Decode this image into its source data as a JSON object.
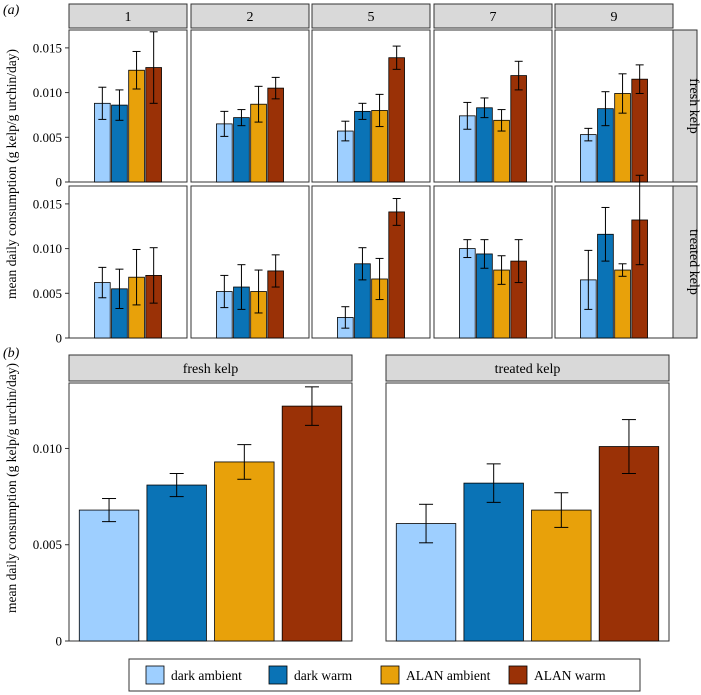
{
  "panel_labels": [
    "(a)",
    "(b)"
  ],
  "colors": {
    "dark ambient": "#9ecfff",
    "dark warm": "#0a73b6",
    "ALAN ambient": "#e8a10a",
    "ALAN warm": "#9a3106",
    "strip_fill": "#d9d9d9",
    "panel_border": "#333333"
  },
  "legend": [
    "dark ambient",
    "dark warm",
    "ALAN ambient",
    "ALAN warm"
  ],
  "chart_data": [
    {
      "type": "bar",
      "panel": "(a)",
      "facet_columns": [
        "1",
        "2",
        "5",
        "7",
        "9"
      ],
      "facet_rows": [
        "fresh kelp",
        "treated kelp"
      ],
      "ylabel": "mean daily consumption (g kelp/g urchin/day)",
      "ylim": [
        0,
        0.017
      ],
      "yticks": [
        0,
        0.005,
        0.01,
        0.015
      ],
      "ytick_labels": [
        "0",
        "0.005",
        "0.010",
        "0.015"
      ],
      "categories": [
        "dark ambient",
        "dark warm",
        "ALAN ambient",
        "ALAN warm"
      ],
      "facets": [
        {
          "row": "fresh kelp",
          "col": "1",
          "values": [
            0.0088,
            0.0086,
            0.0125,
            0.0128
          ],
          "err": [
            0.0018,
            0.0017,
            0.0021,
            0.004
          ]
        },
        {
          "row": "fresh kelp",
          "col": "2",
          "values": [
            0.0065,
            0.0072,
            0.0087,
            0.0105
          ],
          "err": [
            0.0014,
            0.0009,
            0.002,
            0.0012
          ]
        },
        {
          "row": "fresh kelp",
          "col": "5",
          "values": [
            0.0057,
            0.0079,
            0.008,
            0.0139
          ],
          "err": [
            0.0011,
            0.0009,
            0.0018,
            0.0013
          ]
        },
        {
          "row": "fresh kelp",
          "col": "7",
          "values": [
            0.0074,
            0.0083,
            0.0069,
            0.0119
          ],
          "err": [
            0.0015,
            0.0011,
            0.0012,
            0.0016
          ]
        },
        {
          "row": "fresh kelp",
          "col": "9",
          "values": [
            0.0053,
            0.0082,
            0.0099,
            0.0115
          ],
          "err": [
            0.0007,
            0.0019,
            0.0022,
            0.0016
          ]
        },
        {
          "row": "treated kelp",
          "col": "1",
          "values": [
            0.0062,
            0.0055,
            0.0068,
            0.007
          ],
          "err": [
            0.0017,
            0.0022,
            0.0031,
            0.0031
          ]
        },
        {
          "row": "treated kelp",
          "col": "2",
          "values": [
            0.0052,
            0.0057,
            0.0052,
            0.0075
          ],
          "err": [
            0.0018,
            0.0025,
            0.0024,
            0.0018
          ]
        },
        {
          "row": "treated kelp",
          "col": "5",
          "values": [
            0.0023,
            0.0083,
            0.0066,
            0.0141
          ],
          "err": [
            0.0012,
            0.0018,
            0.0023,
            0.0015
          ]
        },
        {
          "row": "treated kelp",
          "col": "7",
          "values": [
            0.01,
            0.0094,
            0.0076,
            0.0086
          ],
          "err": [
            0.001,
            0.0016,
            0.0016,
            0.0024
          ]
        },
        {
          "row": "treated kelp",
          "col": "9",
          "values": [
            0.0065,
            0.0116,
            0.0076,
            0.0132
          ],
          "err": [
            0.0033,
            0.003,
            0.0007,
            0.005
          ]
        }
      ]
    },
    {
      "type": "bar",
      "panel": "(b)",
      "facet_columns": [
        "fresh kelp",
        "treated kelp"
      ],
      "ylabel": "mean daily consumption (g kelp/g urchin/day)",
      "ylim": [
        0,
        0.0134
      ],
      "yticks": [
        0,
        0.005,
        0.01
      ],
      "ytick_labels": [
        "0",
        "0.005",
        "0.010"
      ],
      "categories": [
        "dark ambient",
        "dark warm",
        "ALAN ambient",
        "ALAN warm"
      ],
      "facets": [
        {
          "col": "fresh kelp",
          "values": [
            0.0068,
            0.0081,
            0.0093,
            0.0122
          ],
          "err": [
            0.0006,
            0.0006,
            0.0009,
            0.001
          ]
        },
        {
          "col": "treated kelp",
          "values": [
            0.0061,
            0.0082,
            0.0068,
            0.0101
          ],
          "err": [
            0.001,
            0.001,
            0.0009,
            0.0014
          ]
        }
      ]
    }
  ]
}
